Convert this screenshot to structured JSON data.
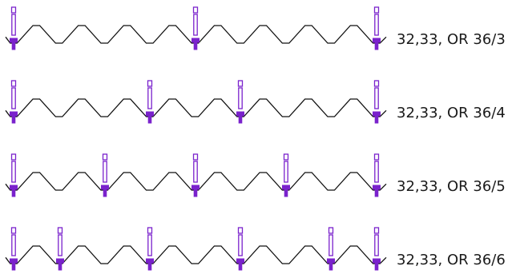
{
  "diagram": {
    "colors": {
      "profile": "#111111",
      "fastener": "#7a22cc",
      "label": "#1a1a1a"
    },
    "rows": [
      {
        "label": "32,33, OR 36/3",
        "fasteners_per_sheet": 3
      },
      {
        "label": "32,33, OR 36/4",
        "fasteners_per_sheet": 4
      },
      {
        "label": "32,33, OR 36/5",
        "fasteners_per_sheet": 5
      },
      {
        "label": "32,33, OR 36/6",
        "fasteners_per_sheet": 6
      }
    ]
  }
}
